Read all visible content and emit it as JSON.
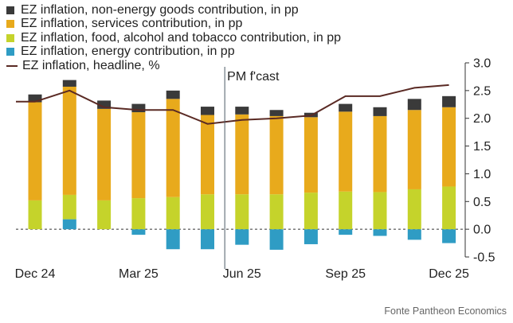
{
  "chart_data": {
    "type": "bar",
    "categories": [
      "Dec 24",
      "Jan 25",
      "Feb 25",
      "Mar 25",
      "Apr 25",
      "May 25",
      "Jun 25",
      "Jul 25",
      "Aug 25",
      "Sep 25",
      "Oct 25",
      "Nov 25",
      "Dec 25"
    ],
    "x_tick_labels": [
      "Dec 24",
      "Mar 25",
      "Jun 25",
      "Sep 25",
      "Dec 25"
    ],
    "y_ticks": [
      "-0.5",
      "0.0",
      "0.5",
      "1.0",
      "1.5",
      "2.0",
      "2.5",
      "3.0"
    ],
    "ylim": [
      -0.5,
      3.0
    ],
    "series": [
      {
        "name": "EZ inflation, energy contribution, in pp",
        "color": "#2f9cc4",
        "values": [
          0.0,
          0.18,
          0.0,
          -0.1,
          -0.36,
          -0.36,
          -0.28,
          -0.37,
          -0.27,
          -0.1,
          -0.12,
          -0.19,
          -0.25
        ]
      },
      {
        "name": "EZ inflation, food, alcohol and tobacco contribution, in pp",
        "color": "#c5d32b",
        "values": [
          0.52,
          0.44,
          0.52,
          0.56,
          0.58,
          0.63,
          0.63,
          0.63,
          0.66,
          0.68,
          0.67,
          0.72,
          0.77
        ]
      },
      {
        "name": "EZ inflation, services contribution, in pp",
        "color": "#e8aa1c",
        "values": [
          1.77,
          1.95,
          1.65,
          1.55,
          1.77,
          1.43,
          1.44,
          1.41,
          1.36,
          1.44,
          1.37,
          1.43,
          1.43
        ]
      },
      {
        "name": "EZ inflation, non-energy goods contribution, in pp",
        "color": "#3a3a3a",
        "values": [
          0.14,
          0.12,
          0.15,
          0.15,
          0.15,
          0.15,
          0.14,
          0.11,
          0.08,
          0.14,
          0.16,
          0.2,
          0.2
        ]
      },
      {
        "name": "EZ inflation, headline, %",
        "color": "#5a2a24",
        "kind": "line",
        "values": [
          2.3,
          2.5,
          2.2,
          2.15,
          2.15,
          1.9,
          1.97,
          2.0,
          2.05,
          2.4,
          2.4,
          2.55,
          2.6
        ]
      }
    ],
    "forecast_label": "PM f'cast",
    "forecast_start_index": 6,
    "axis_side": "right",
    "grid": false
  },
  "legend": [
    {
      "label": "EZ inflation, non-energy goods contribution, in pp",
      "color": "#3a3a3a",
      "kind": "bar"
    },
    {
      "label": "EZ inflation, services contribution, in pp",
      "color": "#e8aa1c",
      "kind": "bar"
    },
    {
      "label": "EZ inflation, food, alcohol and tobacco contribution, in pp",
      "color": "#c5d32b",
      "kind": "bar"
    },
    {
      "label": "EZ inflation, energy contribution, in pp",
      "color": "#2f9cc4",
      "kind": "bar"
    },
    {
      "label": "EZ inflation, headline, %",
      "color": "#5a2a24",
      "kind": "line"
    }
  ],
  "source": "Fonte Pantheon Economics"
}
